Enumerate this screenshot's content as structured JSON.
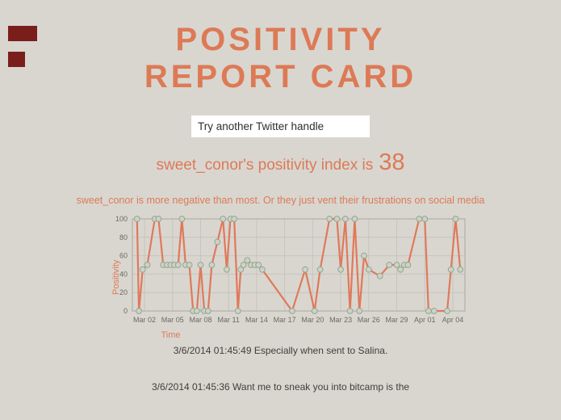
{
  "header": {
    "title_line1": "POSITIVITY",
    "title_line2": "REPORT CARD",
    "accent_color": "#dd7a56"
  },
  "search": {
    "placeholder": "Try another Twitter handle"
  },
  "index_heading": {
    "prefix": "sweet_conor's positivity index is",
    "value": "38"
  },
  "summary": "sweet_conor is more negative than most. Or they just vent their frustrations on social media",
  "tweets": [
    "3/6/2014 01:45:49 Especially when sent to Salina.",
    "3/6/2014 01:45:36 Want me to sneak you into bitcamp is the"
  ],
  "decorations": {
    "corner_badge_color": "#7a1e1c",
    "background_color": "#d9d6d0"
  },
  "chart_data": {
    "type": "line",
    "title": "",
    "xlabel": "Time",
    "ylabel": "Positivity",
    "ylim": [
      0,
      100
    ],
    "yticks": [
      0,
      20,
      40,
      60,
      80,
      100
    ],
    "xlim_days": [
      -0.3,
      35.3
    ],
    "x_axis_note": "days offset from Mar 01 2014",
    "xticks": [
      {
        "day": 1,
        "label": "Mar 02"
      },
      {
        "day": 4,
        "label": "Mar 05"
      },
      {
        "day": 7,
        "label": "Mar 08"
      },
      {
        "day": 10,
        "label": "Mar 11"
      },
      {
        "day": 13,
        "label": "Mar 14"
      },
      {
        "day": 16,
        "label": "Mar 17"
      },
      {
        "day": 19,
        "label": "Mar 20"
      },
      {
        "day": 22,
        "label": "Mar 23"
      },
      {
        "day": 25,
        "label": "Mar 26"
      },
      {
        "day": 28,
        "label": "Mar 29"
      },
      {
        "day": 31,
        "label": "Apr 01"
      },
      {
        "day": 34,
        "label": "Apr 04"
      }
    ],
    "x_days": [
      0.2,
      0.4,
      0.8,
      1.3,
      2.1,
      2.5,
      3.0,
      3.4,
      3.8,
      4.2,
      4.6,
      5.0,
      5.4,
      5.8,
      6.2,
      6.6,
      7.0,
      7.4,
      7.8,
      8.2,
      8.8,
      9.4,
      9.8,
      10.2,
      10.6,
      11.0,
      11.3,
      11.6,
      12.0,
      12.4,
      12.8,
      13.2,
      13.6,
      16.8,
      18.2,
      19.2,
      19.8,
      20.8,
      21.6,
      22.0,
      22.5,
      23.0,
      23.5,
      24.0,
      24.5,
      25.0,
      26.2,
      27.2,
      28.0,
      28.4,
      28.8,
      29.2,
      30.4,
      31.0,
      31.4,
      32.0,
      33.4,
      33.8,
      34.3,
      34.8
    ],
    "y_values": [
      100,
      0,
      45,
      50,
      100,
      100,
      50,
      50,
      50,
      50,
      50,
      100,
      50,
      50,
      0,
      0,
      50,
      0,
      0,
      50,
      75,
      100,
      45,
      100,
      100,
      0,
      45,
      50,
      55,
      50,
      50,
      50,
      45,
      0,
      45,
      0,
      45,
      100,
      100,
      45,
      100,
      0,
      100,
      0,
      60,
      45,
      38,
      50,
      50,
      45,
      50,
      50,
      100,
      100,
      0,
      0,
      0,
      45,
      100,
      45
    ],
    "line_color": "#e0795a",
    "marker_fill": "#ccd3c5",
    "marker_stroke": "#95a591",
    "grid_color": "#c7c4bd",
    "border_color": "#aaa79f",
    "tick_color": "#6b6a63",
    "legend": "none",
    "grid": true
  }
}
